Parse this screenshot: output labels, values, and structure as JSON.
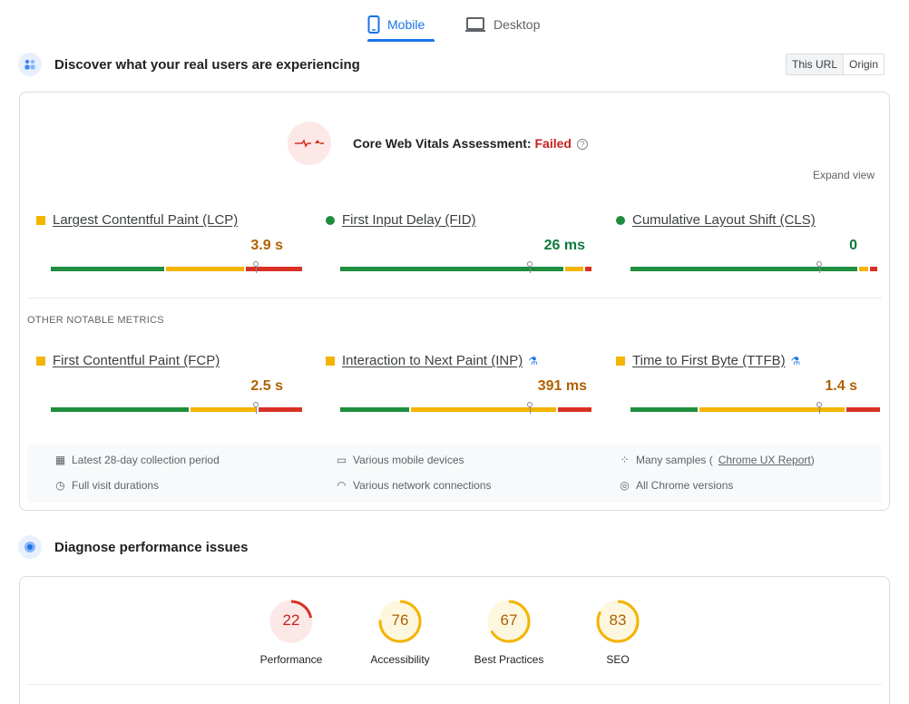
{
  "tabs": {
    "mobile": "Mobile",
    "desktop": "Desktop"
  },
  "section1": {
    "title": "Discover what your real users are experiencing",
    "toggle": {
      "this_url": "This URL",
      "origin": "Origin"
    },
    "assessment_prefix": "Core Web Vitals Assessment: ",
    "assessment_status": "Failed",
    "help": "?",
    "expand": "Expand view",
    "core_metrics": [
      {
        "label": "Largest Contentful Paint (LCP)",
        "value": "3.9 s",
        "status": "needs-improvement"
      },
      {
        "label": "First Input Delay (FID)",
        "value": "26 ms",
        "status": "good"
      },
      {
        "label": "Cumulative Layout Shift (CLS)",
        "value": "0",
        "status": "good"
      }
    ],
    "other_heading": "OTHER NOTABLE METRICS",
    "other_metrics": [
      {
        "label": "First Contentful Paint (FCP)",
        "value": "2.5 s",
        "status": "needs-improvement",
        "experimental": false
      },
      {
        "label": "Interaction to Next Paint (INP)",
        "value": "391 ms",
        "status": "needs-improvement",
        "experimental": true
      },
      {
        "label": "Time to First Byte (TTFB)",
        "value": "1.4 s",
        "status": "needs-improvement",
        "experimental": true
      }
    ],
    "info": {
      "period": "Latest 28-day collection period",
      "devices": "Various mobile devices",
      "samples_prefix": "Many samples (",
      "samples_link": "Chrome UX Report",
      "samples_suffix": ")",
      "durations": "Full visit durations",
      "network": "Various network connections",
      "versions": "All Chrome versions"
    }
  },
  "section2": {
    "title": "Diagnose performance issues",
    "scores": [
      {
        "label": "Performance",
        "value": "22",
        "color": "#d93025",
        "score": 22
      },
      {
        "label": "Accessibility",
        "value": "76",
        "color": "#f4b400",
        "score": 76
      },
      {
        "label": "Best Practices",
        "value": "67",
        "color": "#f4b400",
        "score": 67
      },
      {
        "label": "SEO",
        "value": "83",
        "color": "#f4b400",
        "score": 83
      }
    ]
  },
  "colors": {
    "accent": "#1a73e8",
    "good": "#1e8e3e",
    "warn": "#f4b400",
    "poor": "#d93025"
  }
}
